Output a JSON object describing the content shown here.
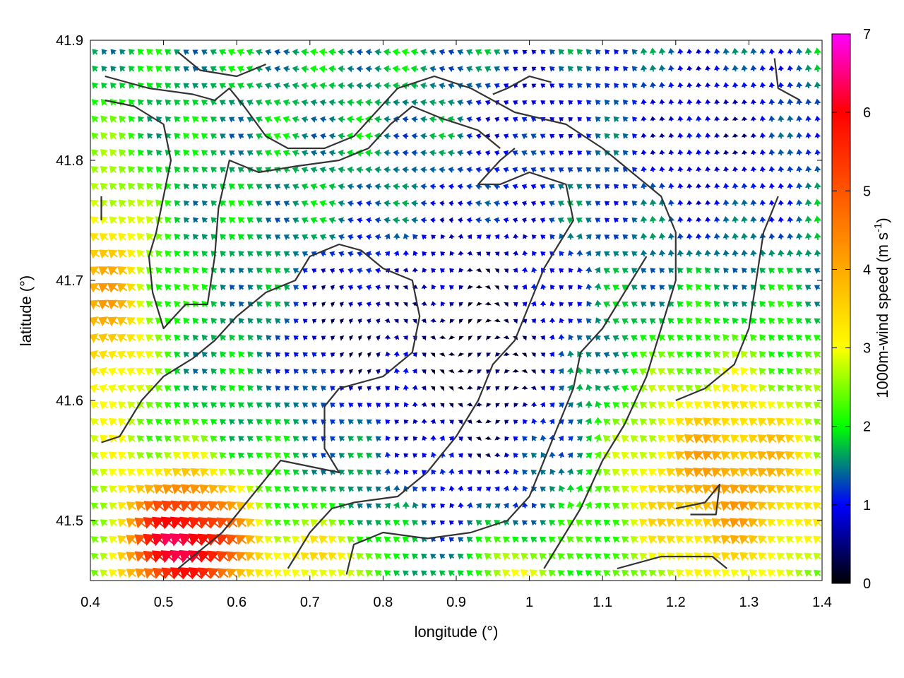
{
  "chart_data": {
    "type": "quiver",
    "xlabel": "longitude (°)",
    "ylabel": "latitude (°)",
    "colorbar_label": "1000m-wind speed (m s",
    "colorbar_label_sup": "-1",
    "colorbar_label_close": ")",
    "xlim": [
      0.4,
      1.4
    ],
    "ylim": [
      41.45,
      41.9
    ],
    "colorbar_range": [
      0,
      7
    ],
    "x_ticks": [
      "0.4",
      "0.5",
      "0.6",
      "0.7",
      "0.8",
      "0.9",
      "1",
      "1.1",
      "1.2",
      "1.3",
      "1.4"
    ],
    "x_tick_values": [
      0.4,
      0.5,
      0.6,
      0.7,
      0.8,
      0.9,
      1.0,
      1.1,
      1.2,
      1.3,
      1.4
    ],
    "y_ticks": [
      "41.5",
      "41.6",
      "41.7",
      "41.8",
      "41.9"
    ],
    "y_tick_values": [
      41.5,
      41.6,
      41.7,
      41.8,
      41.9
    ],
    "colorbar_ticks": [
      "0",
      "1",
      "2",
      "3",
      "4",
      "5",
      "6",
      "7"
    ],
    "colorbar_tick_values": [
      0,
      1,
      2,
      3,
      4,
      5,
      6,
      7
    ],
    "colormap": [
      {
        "value": 0,
        "color": "#000000"
      },
      {
        "value": 1,
        "color": "#0000ff"
      },
      {
        "value": 2,
        "color": "#00ff00"
      },
      {
        "value": 3,
        "color": "#ffff00"
      },
      {
        "value": 4,
        "color": "#ffaa00"
      },
      {
        "value": 5,
        "color": "#ff5500"
      },
      {
        "value": 6,
        "color": "#ff0000"
      },
      {
        "value": 7,
        "color": "#ff00ff"
      }
    ],
    "wind_field": {
      "grid_spacing_deg": 0.0125,
      "description_of_regions": [
        {
          "region": "southwest (lon 0.45-0.65, lat 41.45-41.55)",
          "speed_ms": 6.5,
          "direction": "toward northwest"
        },
        {
          "region": "west edge (lon 0.4-0.5, lat 41.6-41.78)",
          "speed_ms": 3.5,
          "direction": "toward northwest"
        },
        {
          "region": "southeast (lon 1.1-1.4, lat 41.45-41.65)",
          "speed_ms": 4.0,
          "direction": "toward northwest"
        },
        {
          "region": "central basin (lon 0.8-1.1, lat 41.5-41.75)",
          "speed_ms": 0.5,
          "direction": "variable"
        },
        {
          "region": "northern ridges (lon 0.45-1.0, lat 41.75-41.9)",
          "speed_ms": 1.8,
          "direction": "toward west"
        },
        {
          "region": "northeast (lon 1.1-1.4, lat 41.75-41.9)",
          "speed_ms": 0.8,
          "direction": "toward north"
        }
      ]
    },
    "contour_lines": [
      [
        [
          0.42,
          41.87
        ],
        [
          0.48,
          41.86
        ],
        [
          0.54,
          41.855
        ],
        [
          0.57,
          41.85
        ],
        [
          0.59,
          41.86
        ],
        [
          0.61,
          41.845
        ],
        [
          0.64,
          41.82
        ],
        [
          0.67,
          41.81
        ],
        [
          0.72,
          41.81
        ],
        [
          0.76,
          41.82
        ],
        [
          0.79,
          41.84
        ],
        [
          0.82,
          41.86
        ],
        [
          0.87,
          41.87
        ],
        [
          0.92,
          41.86
        ],
        [
          0.98,
          41.84
        ],
        [
          1.05,
          41.83
        ],
        [
          1.1,
          41.81
        ],
        [
          1.14,
          41.79
        ],
        [
          1.18,
          41.77
        ],
        [
          1.2,
          41.74
        ],
        [
          1.2,
          41.7
        ],
        [
          1.18,
          41.66
        ],
        [
          1.16,
          41.62
        ],
        [
          1.13,
          41.58
        ],
        [
          1.1,
          41.55
        ],
        [
          1.07,
          41.51
        ],
        [
          1.04,
          41.48
        ],
        [
          1.02,
          41.46
        ]
      ],
      [
        [
          0.42,
          41.85
        ],
        [
          0.46,
          41.845
        ],
        [
          0.5,
          41.83
        ],
        [
          0.51,
          41.8
        ],
        [
          0.5,
          41.77
        ],
        [
          0.49,
          41.74
        ],
        [
          0.48,
          41.72
        ],
        [
          0.485,
          41.69
        ],
        [
          0.5,
          41.66
        ],
        [
          0.53,
          41.68
        ],
        [
          0.56,
          41.68
        ],
        [
          0.57,
          41.72
        ],
        [
          0.575,
          41.76
        ],
        [
          0.59,
          41.8
        ],
        [
          0.63,
          41.79
        ],
        [
          0.68,
          41.795
        ],
        [
          0.74,
          41.8
        ],
        [
          0.78,
          41.81
        ],
        [
          0.81,
          41.83
        ],
        [
          0.84,
          41.845
        ],
        [
          0.88,
          41.835
        ],
        [
          0.93,
          41.825
        ],
        [
          0.96,
          41.81
        ]
      ],
      [
        [
          0.415,
          41.565
        ],
        [
          0.44,
          41.57
        ],
        [
          0.47,
          41.6
        ],
        [
          0.5,
          41.62
        ],
        [
          0.54,
          41.635
        ],
        [
          0.57,
          41.65
        ],
        [
          0.6,
          41.67
        ],
        [
          0.64,
          41.69
        ],
        [
          0.68,
          41.7
        ],
        [
          0.7,
          41.72
        ],
        [
          0.74,
          41.73
        ],
        [
          0.77,
          41.725
        ],
        [
          0.8,
          41.71
        ],
        [
          0.84,
          41.7
        ],
        [
          0.85,
          41.67
        ],
        [
          0.84,
          41.64
        ],
        [
          0.8,
          41.62
        ],
        [
          0.74,
          41.61
        ],
        [
          0.72,
          41.595
        ],
        [
          0.72,
          41.56
        ],
        [
          0.74,
          41.54
        ],
        [
          0.7,
          41.545
        ],
        [
          0.66,
          41.55
        ],
        [
          0.62,
          41.52
        ],
        [
          0.58,
          41.49
        ],
        [
          0.52,
          41.46
        ]
      ],
      [
        [
          0.67,
          41.46
        ],
        [
          0.7,
          41.49
        ],
        [
          0.73,
          41.51
        ],
        [
          0.76,
          41.515
        ],
        [
          0.82,
          41.52
        ],
        [
          0.86,
          41.54
        ],
        [
          0.9,
          41.57
        ],
        [
          0.93,
          41.6
        ],
        [
          0.95,
          41.63
        ],
        [
          0.98,
          41.65
        ],
        [
          1.0,
          41.68
        ],
        [
          1.02,
          41.71
        ],
        [
          1.04,
          41.73
        ],
        [
          1.06,
          41.75
        ],
        [
          1.05,
          41.78
        ],
        [
          1.0,
          41.79
        ],
        [
          0.96,
          41.78
        ],
        [
          0.93,
          41.78
        ],
        [
          0.96,
          41.8
        ],
        [
          0.98,
          41.81
        ]
      ],
      [
        [
          0.75,
          41.455
        ],
        [
          0.76,
          41.48
        ],
        [
          0.8,
          41.49
        ],
        [
          0.86,
          41.485
        ],
        [
          0.92,
          41.49
        ],
        [
          0.97,
          41.5
        ],
        [
          1.0,
          41.52
        ],
        [
          1.02,
          41.55
        ],
        [
          1.04,
          41.58
        ],
        [
          1.06,
          41.61
        ],
        [
          1.07,
          41.64
        ],
        [
          1.1,
          41.66
        ],
        [
          1.12,
          41.68
        ],
        [
          1.14,
          41.7
        ],
        [
          1.16,
          41.72
        ]
      ],
      [
        [
          1.12,
          41.46
        ],
        [
          1.18,
          41.47
        ],
        [
          1.25,
          41.47
        ],
        [
          1.27,
          41.46
        ]
      ],
      [
        [
          1.2,
          41.51
        ],
        [
          1.24,
          41.515
        ],
        [
          1.26,
          41.53
        ],
        [
          1.255,
          41.505
        ],
        [
          1.22,
          41.505
        ]
      ],
      [
        [
          1.34,
          41.77
        ],
        [
          1.32,
          41.74
        ],
        [
          1.31,
          41.7
        ],
        [
          1.3,
          41.66
        ],
        [
          1.28,
          41.63
        ],
        [
          1.24,
          41.61
        ],
        [
          1.2,
          41.6
        ]
      ],
      [
        [
          1.335,
          41.885
        ],
        [
          1.34,
          41.86
        ],
        [
          1.37,
          41.85
        ]
      ],
      [
        [
          0.52,
          41.89
        ],
        [
          0.55,
          41.875
        ],
        [
          0.6,
          41.87
        ],
        [
          0.64,
          41.88
        ]
      ],
      [
        [
          0.415,
          41.77
        ],
        [
          0.415,
          41.75
        ]
      ],
      [
        [
          0.95,
          41.855
        ],
        [
          0.97,
          41.86
        ],
        [
          1.0,
          41.87
        ],
        [
          1.03,
          41.865
        ]
      ]
    ]
  }
}
